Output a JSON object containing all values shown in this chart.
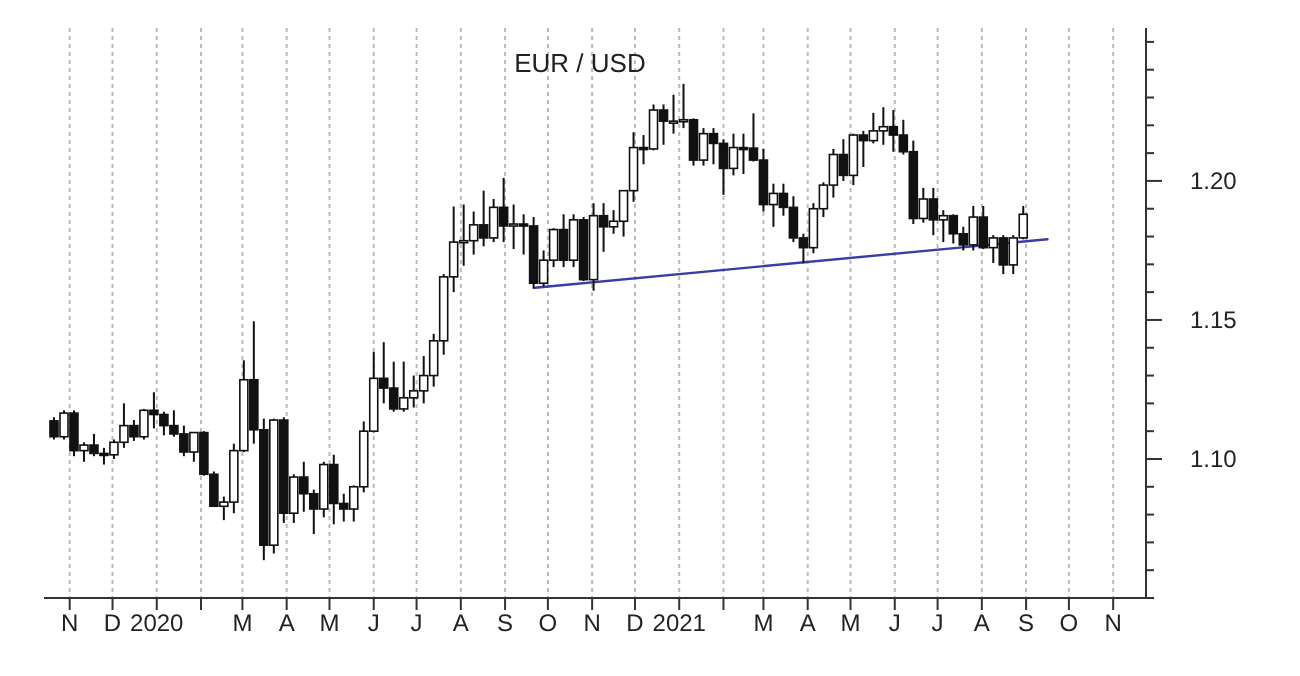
{
  "chart_data": {
    "type": "candlestick",
    "title": "EUR / USD",
    "x": [
      "2019-10-21",
      "2019-10-28",
      "2019-11-04",
      "2019-11-11",
      "2019-11-18",
      "2019-11-25",
      "2019-12-02",
      "2019-12-09",
      "2019-12-16",
      "2019-12-23",
      "2019-12-30",
      "2020-01-06",
      "2020-01-13",
      "2020-01-20",
      "2020-01-27",
      "2020-02-03",
      "2020-02-10",
      "2020-02-17",
      "2020-02-24",
      "2020-03-02",
      "2020-03-09",
      "2020-03-16",
      "2020-03-23",
      "2020-03-30",
      "2020-04-06",
      "2020-04-13",
      "2020-04-20",
      "2020-04-27",
      "2020-05-04",
      "2020-05-11",
      "2020-05-18",
      "2020-05-25",
      "2020-06-01",
      "2020-06-08",
      "2020-06-15",
      "2020-06-22",
      "2020-06-29",
      "2020-07-06",
      "2020-07-13",
      "2020-07-20",
      "2020-07-27",
      "2020-08-03",
      "2020-08-10",
      "2020-08-17",
      "2020-08-24",
      "2020-08-31",
      "2020-09-07",
      "2020-09-14",
      "2020-09-21",
      "2020-09-28",
      "2020-10-05",
      "2020-10-12",
      "2020-10-19",
      "2020-10-26",
      "2020-11-02",
      "2020-11-09",
      "2020-11-16",
      "2020-11-23",
      "2020-11-30",
      "2020-12-07",
      "2020-12-14",
      "2020-12-21",
      "2020-12-28",
      "2021-01-04",
      "2021-01-11",
      "2021-01-18",
      "2021-01-25",
      "2021-02-01",
      "2021-02-08",
      "2021-02-15",
      "2021-02-22",
      "2021-03-01",
      "2021-03-08",
      "2021-03-15",
      "2021-03-22",
      "2021-03-29",
      "2021-04-05",
      "2021-04-12",
      "2021-04-19",
      "2021-04-26",
      "2021-05-03",
      "2021-05-10",
      "2021-05-17",
      "2021-05-24",
      "2021-05-31",
      "2021-06-07",
      "2021-06-14",
      "2021-06-21",
      "2021-06-28",
      "2021-07-05",
      "2021-07-12",
      "2021-07-19",
      "2021-07-26",
      "2021-08-02",
      "2021-08-09",
      "2021-08-16",
      "2021-08-23",
      "2021-08-30"
    ],
    "ohlc": [
      [
        1.1137,
        1.115,
        1.107,
        1.108
      ],
      [
        1.108,
        1.1175,
        1.107,
        1.1165
      ],
      [
        1.1165,
        1.1175,
        1.101,
        1.103
      ],
      [
        1.103,
        1.106,
        1.099,
        1.105
      ],
      [
        1.105,
        1.109,
        1.101,
        1.102
      ],
      [
        1.102,
        1.104,
        1.098,
        1.1015
      ],
      [
        1.1015,
        1.107,
        1.1,
        1.106
      ],
      [
        1.106,
        1.12,
        1.104,
        1.112
      ],
      [
        1.112,
        1.114,
        1.1065,
        1.108
      ],
      [
        1.108,
        1.118,
        1.107,
        1.1175
      ],
      [
        1.1175,
        1.124,
        1.111,
        1.116
      ],
      [
        1.116,
        1.117,
        1.1085,
        1.112
      ],
      [
        1.112,
        1.1175,
        1.108,
        1.109
      ],
      [
        1.109,
        1.112,
        1.101,
        1.1025
      ],
      [
        1.1025,
        1.1095,
        1.099,
        1.1095
      ],
      [
        1.1095,
        1.11,
        1.094,
        1.0945
      ],
      [
        1.0945,
        1.0955,
        1.083,
        1.083
      ],
      [
        1.083,
        1.0865,
        1.078,
        1.0845
      ],
      [
        1.0845,
        1.1055,
        1.0805,
        1.103
      ],
      [
        1.103,
        1.1355,
        1.1025,
        1.1285
      ],
      [
        1.1285,
        1.1495,
        1.1055,
        1.1105
      ],
      [
        1.1105,
        1.1145,
        1.0636,
        1.069
      ],
      [
        1.069,
        1.1145,
        1.066,
        1.114
      ],
      [
        1.114,
        1.115,
        1.077,
        1.0805
      ],
      [
        1.0805,
        1.0945,
        1.077,
        1.0935
      ],
      [
        1.0935,
        1.099,
        1.081,
        1.0875
      ],
      [
        1.0875,
        1.089,
        1.073,
        1.082
      ],
      [
        1.082,
        1.099,
        1.079,
        1.098
      ],
      [
        1.098,
        1.1015,
        1.0765,
        1.084
      ],
      [
        1.084,
        1.0875,
        1.0775,
        1.082
      ],
      [
        1.082,
        1.0905,
        1.0775,
        1.09
      ],
      [
        1.09,
        1.1135,
        1.088,
        1.11
      ],
      [
        1.11,
        1.1385,
        1.1095,
        1.129
      ],
      [
        1.129,
        1.142,
        1.12,
        1.1255
      ],
      [
        1.1255,
        1.135,
        1.117,
        1.118
      ],
      [
        1.118,
        1.135,
        1.117,
        1.122
      ],
      [
        1.122,
        1.13,
        1.1185,
        1.1245
      ],
      [
        1.1245,
        1.137,
        1.12,
        1.13
      ],
      [
        1.13,
        1.145,
        1.126,
        1.1425
      ],
      [
        1.1425,
        1.1665,
        1.1375,
        1.1655
      ],
      [
        1.1655,
        1.1908,
        1.16,
        1.178
      ],
      [
        1.178,
        1.1915,
        1.1695,
        1.1785
      ],
      [
        1.1785,
        1.189,
        1.1735,
        1.1842
      ],
      [
        1.1842,
        1.1965,
        1.1765,
        1.1795
      ],
      [
        1.1795,
        1.1935,
        1.178,
        1.1905
      ],
      [
        1.1905,
        1.2011,
        1.178,
        1.1838
      ],
      [
        1.1838,
        1.1915,
        1.1755,
        1.1845
      ],
      [
        1.1845,
        1.188,
        1.1735,
        1.1838
      ],
      [
        1.1838,
        1.187,
        1.1612,
        1.1632
      ],
      [
        1.1632,
        1.175,
        1.162,
        1.1715
      ],
      [
        1.1715,
        1.183,
        1.169,
        1.1825
      ],
      [
        1.1825,
        1.188,
        1.169,
        1.1715
      ],
      [
        1.1715,
        1.188,
        1.169,
        1.186
      ],
      [
        1.186,
        1.187,
        1.164,
        1.1645
      ],
      [
        1.1645,
        1.192,
        1.1605,
        1.1875
      ],
      [
        1.1875,
        1.192,
        1.1745,
        1.1835
      ],
      [
        1.1835,
        1.1895,
        1.181,
        1.1855
      ],
      [
        1.1855,
        1.1965,
        1.18,
        1.1965
      ],
      [
        1.1965,
        1.2175,
        1.1925,
        1.212
      ],
      [
        1.212,
        1.2165,
        1.206,
        1.2115
      ],
      [
        1.2115,
        1.2275,
        1.211,
        1.2255
      ],
      [
        1.2255,
        1.2275,
        1.213,
        1.2215
      ],
      [
        1.2215,
        1.231,
        1.217,
        1.2215
      ],
      [
        1.2215,
        1.2349,
        1.219,
        1.222
      ],
      [
        1.222,
        1.2225,
        1.2055,
        1.2075
      ],
      [
        1.2075,
        1.219,
        1.2055,
        1.217
      ],
      [
        1.217,
        1.219,
        1.206,
        1.2135
      ],
      [
        1.2135,
        1.215,
        1.195,
        1.2045
      ],
      [
        1.2045,
        1.217,
        1.202,
        1.212
      ],
      [
        1.212,
        1.217,
        1.2025,
        1.2118
      ],
      [
        1.2118,
        1.2243,
        1.207,
        1.2075
      ],
      [
        1.2075,
        1.2115,
        1.189,
        1.1915
      ],
      [
        1.1915,
        1.199,
        1.1835,
        1.1955
      ],
      [
        1.1955,
        1.199,
        1.1875,
        1.1905
      ],
      [
        1.1905,
        1.1945,
        1.178,
        1.1795
      ],
      [
        1.1795,
        1.181,
        1.1704,
        1.176
      ],
      [
        1.176,
        1.192,
        1.174,
        1.19
      ],
      [
        1.19,
        1.1995,
        1.187,
        1.1985
      ],
      [
        1.1985,
        1.2115,
        1.194,
        1.2095
      ],
      [
        1.2095,
        1.215,
        1.2,
        1.202
      ],
      [
        1.202,
        1.217,
        1.1985,
        1.2165
      ],
      [
        1.2165,
        1.218,
        1.205,
        1.2145
      ],
      [
        1.2145,
        1.2245,
        1.2135,
        1.218
      ],
      [
        1.218,
        1.2265,
        1.213,
        1.2195
      ],
      [
        1.2195,
        1.2255,
        1.2105,
        1.2165
      ],
      [
        1.2165,
        1.222,
        1.2095,
        1.2105
      ],
      [
        1.2105,
        1.2145,
        1.1845,
        1.1865
      ],
      [
        1.1865,
        1.1975,
        1.185,
        1.1935
      ],
      [
        1.1935,
        1.1975,
        1.1805,
        1.186
      ],
      [
        1.186,
        1.1895,
        1.178,
        1.1875
      ],
      [
        1.1875,
        1.188,
        1.1775,
        1.181
      ],
      [
        1.181,
        1.1835,
        1.175,
        1.177
      ],
      [
        1.177,
        1.191,
        1.175,
        1.187
      ],
      [
        1.187,
        1.191,
        1.1755,
        1.176
      ],
      [
        1.176,
        1.1805,
        1.1705,
        1.1795
      ],
      [
        1.1795,
        1.1805,
        1.1665,
        1.1698
      ],
      [
        1.1698,
        1.1805,
        1.1665,
        1.1795
      ],
      [
        1.1795,
        1.191,
        1.179,
        1.188
      ]
    ],
    "series": [
      {
        "type": "line",
        "color": "#3c3ca8",
        "x": [
          "2020-09-22",
          "2021-09-16"
        ],
        "values": [
          1.1616,
          1.179
        ]
      }
    ],
    "xlim": [
      "2019-10-14",
      "2021-11-24"
    ],
    "xticks": [
      {
        "value": "2019-11-01",
        "label": "N"
      },
      {
        "value": "2019-12-01",
        "label": "D"
      },
      {
        "value": "2020-01-01",
        "label": "2020"
      },
      {
        "value": "2020-02-01",
        "label": null
      },
      {
        "value": "2020-03-01",
        "label": "M"
      },
      {
        "value": "2020-04-01",
        "label": "A"
      },
      {
        "value": "2020-05-01",
        "label": "M"
      },
      {
        "value": "2020-06-01",
        "label": "J"
      },
      {
        "value": "2020-07-01",
        "label": "J"
      },
      {
        "value": "2020-08-01",
        "label": "A"
      },
      {
        "value": "2020-09-01",
        "label": "S"
      },
      {
        "value": "2020-10-01",
        "label": "O"
      },
      {
        "value": "2020-11-01",
        "label": "N"
      },
      {
        "value": "2020-12-01",
        "label": "D"
      },
      {
        "value": "2021-01-01",
        "label": "2021"
      },
      {
        "value": "2021-02-01",
        "label": null
      },
      {
        "value": "2021-03-01",
        "label": "M"
      },
      {
        "value": "2021-04-01",
        "label": "A"
      },
      {
        "value": "2021-05-01",
        "label": "M"
      },
      {
        "value": "2021-06-01",
        "label": "J"
      },
      {
        "value": "2021-07-01",
        "label": "J"
      },
      {
        "value": "2021-08-01",
        "label": "A"
      },
      {
        "value": "2021-09-01",
        "label": "S"
      },
      {
        "value": "2021-10-01",
        "label": "O"
      },
      {
        "value": "2021-11-01",
        "label": "N"
      }
    ],
    "ylim": [
      1.05,
      1.255
    ],
    "yticks": [
      {
        "value": 1.05,
        "label": null
      },
      {
        "value": 1.06,
        "label": null
      },
      {
        "value": 1.07,
        "label": null
      },
      {
        "value": 1.08,
        "label": null
      },
      {
        "value": 1.09,
        "label": null
      },
      {
        "value": 1.1,
        "label": "1.10"
      },
      {
        "value": 1.11,
        "label": null
      },
      {
        "value": 1.12,
        "label": null
      },
      {
        "value": 1.13,
        "label": null
      },
      {
        "value": 1.14,
        "label": null
      },
      {
        "value": 1.15,
        "label": "1.15"
      },
      {
        "value": 1.16,
        "label": null
      },
      {
        "value": 1.17,
        "label": null
      },
      {
        "value": 1.18,
        "label": null
      },
      {
        "value": 1.19,
        "label": null
      },
      {
        "value": 1.2,
        "label": "1.20"
      },
      {
        "value": 1.21,
        "label": null
      },
      {
        "value": 1.22,
        "label": null
      },
      {
        "value": 1.23,
        "label": null
      },
      {
        "value": 1.24,
        "label": null
      },
      {
        "value": 1.25,
        "label": null
      }
    ],
    "grid": "x"
  }
}
